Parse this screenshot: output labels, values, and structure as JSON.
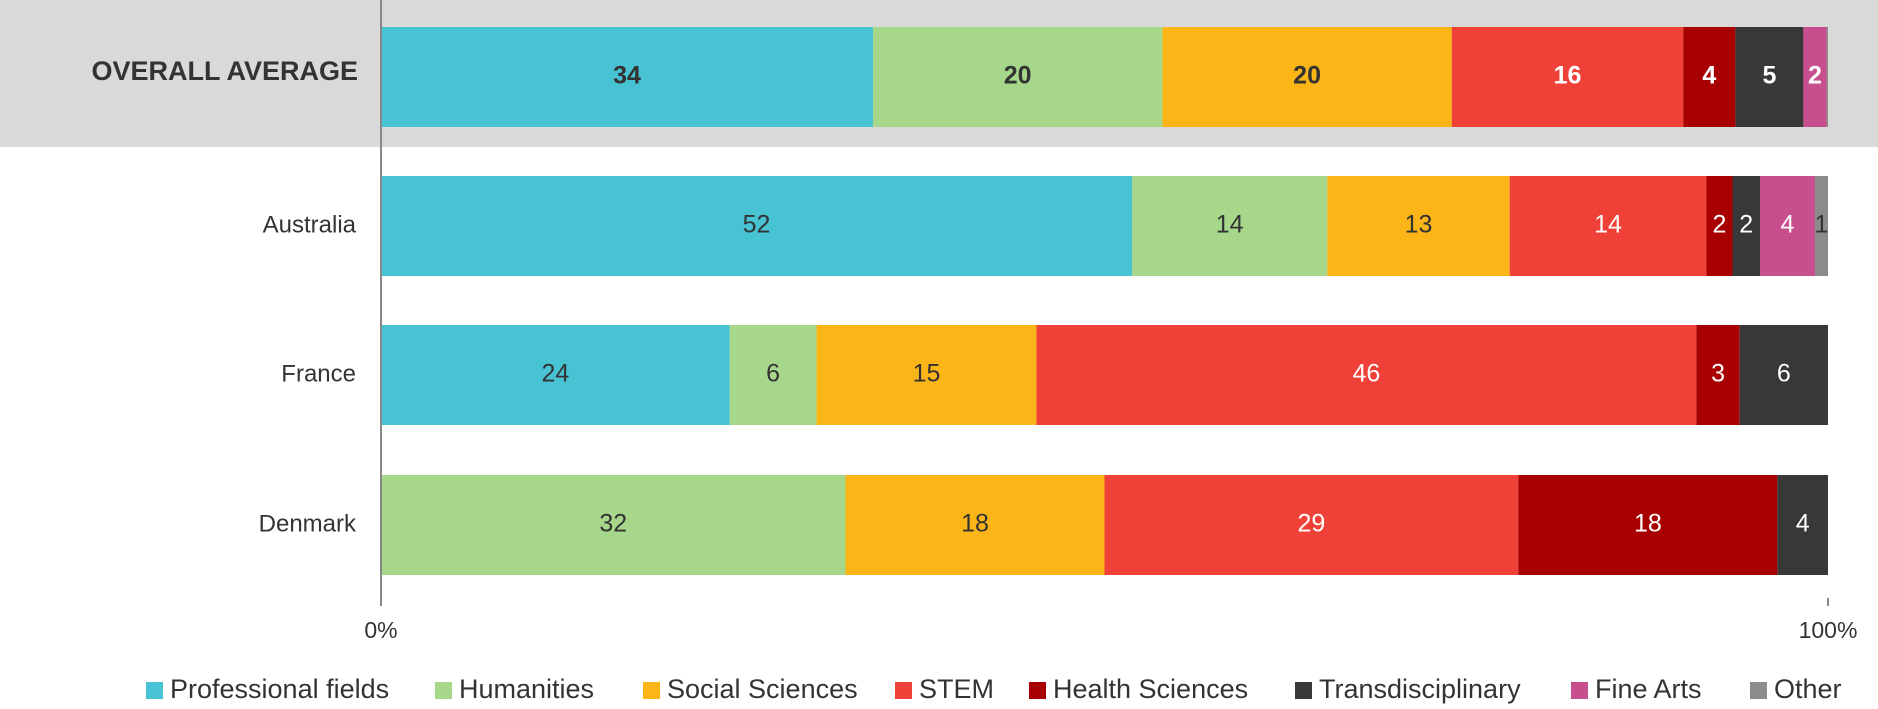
{
  "chart_data": {
    "type": "stacked_bar_horizontal",
    "categories": [
      "OVERALL AVERAGE",
      "Australia",
      "France",
      "Denmark"
    ],
    "series": [
      {
        "name": "Professional fields",
        "color": "#48c3d4",
        "values": [
          34,
          51.9,
          24.1,
          null
        ],
        "value_labels": [
          "34",
          "52",
          "24",
          null
        ]
      },
      {
        "name": "Humanities",
        "color": "#a7d78a",
        "values": [
          20,
          13.5,
          6.0,
          32.1
        ],
        "value_labels": [
          "20",
          "14",
          "6",
          "32"
        ]
      },
      {
        "name": "Social Sciences",
        "color": "#fbb516",
        "values": [
          20,
          12.6,
          15.2,
          17.9
        ],
        "value_labels": [
          "20",
          "13",
          "15",
          "18"
        ]
      },
      {
        "name": "STEM",
        "color": "#ef4138",
        "values": [
          16,
          13.6,
          45.6,
          28.6
        ],
        "value_labels": [
          "16",
          "14",
          "46",
          "29"
        ]
      },
      {
        "name": "Health Sciences",
        "color": "#a80000",
        "values": [
          3.6,
          1.8,
          3.0,
          17.9
        ],
        "value_labels": [
          "4",
          "2",
          "3",
          "18"
        ]
      },
      {
        "name": "Transdisciplinary",
        "color": "#383838",
        "values": [
          4.7,
          1.9,
          6.1,
          3.5
        ],
        "value_labels": [
          "5",
          "2",
          "6",
          "4"
        ]
      },
      {
        "name": "Fine Arts",
        "color": "#c84f8e",
        "values": [
          1.6,
          3.8,
          null,
          null
        ],
        "value_labels": [
          "2",
          "4",
          null,
          null
        ]
      },
      {
        "name": "Other",
        "color": "#8c8c8c",
        "values": [
          0.1,
          0.9,
          null,
          null
        ],
        "value_labels": [
          null,
          "1",
          null,
          null
        ]
      }
    ],
    "xlim": [
      0,
      100
    ],
    "xticks": [
      {
        "value": 0,
        "label": "0%"
      },
      {
        "value": 100,
        "label": "100%"
      }
    ],
    "highlight_category": 0,
    "legend": "bottom"
  }
}
